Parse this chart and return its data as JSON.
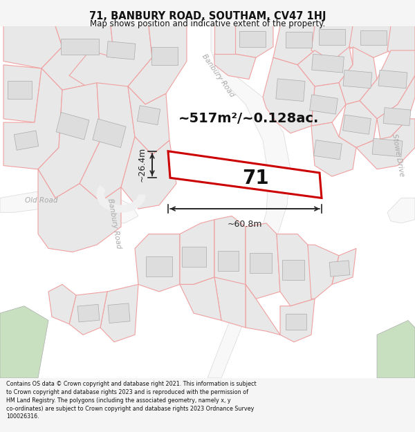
{
  "title": "71, BANBURY ROAD, SOUTHAM, CV47 1HJ",
  "subtitle": "Map shows position and indicative extent of the property.",
  "footer": "Contains OS data © Crown copyright and database right 2021. This information is subject to Crown copyright and database rights 2023 and is reproduced with the permission of HM Land Registry. The polygons (including the associated geometry, namely x, y co-ordinates) are subject to Crown copyright and database rights 2023 Ordnance Survey 100026316.",
  "area_text": "~517m²/~0.128ac.",
  "width_label": "~60.8m",
  "height_label": "~26.4m",
  "property_number": "71",
  "bg_color": "#f5f5f5",
  "map_bg": "#ffffff",
  "plot_ec": "#cc0000",
  "road_color": "#c8c8c8",
  "road_label_color": "#aaaaaa",
  "neighbor_fill": "#e8e8e8",
  "neighbor_edge": "#f0a0a0",
  "neighbor_lw": 0.8,
  "green_color": "#c8e0c0",
  "dim_color": "#222222",
  "text_color": "#111111"
}
